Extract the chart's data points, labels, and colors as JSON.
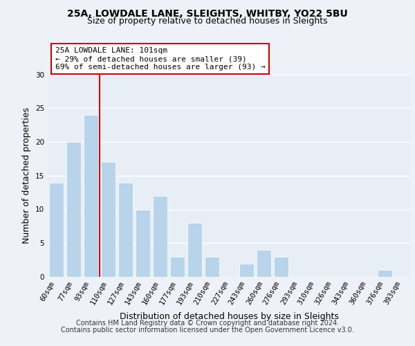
{
  "title": "25A, LOWDALE LANE, SLEIGHTS, WHITBY, YO22 5BU",
  "subtitle": "Size of property relative to detached houses in Sleights",
  "xlabel": "Distribution of detached houses by size in Sleights",
  "ylabel": "Number of detached properties",
  "bar_labels": [
    "60sqm",
    "77sqm",
    "93sqm",
    "110sqm",
    "127sqm",
    "143sqm",
    "160sqm",
    "177sqm",
    "193sqm",
    "210sqm",
    "227sqm",
    "243sqm",
    "260sqm",
    "276sqm",
    "293sqm",
    "310sqm",
    "326sqm",
    "343sqm",
    "360sqm",
    "376sqm",
    "393sqm"
  ],
  "bar_values": [
    14,
    20,
    24,
    17,
    14,
    10,
    12,
    3,
    8,
    3,
    0,
    2,
    4,
    3,
    0,
    0,
    0,
    0,
    0,
    1,
    0
  ],
  "bar_color": "#b8d4ea",
  "bar_edge_color": "#b8d4ea",
  "vline_color": "#cc0000",
  "annotation_text": "25A LOWDALE LANE: 101sqm\n← 29% of detached houses are smaller (39)\n69% of semi-detached houses are larger (93) →",
  "annotation_box_color": "#ffffff",
  "annotation_box_edge": "#cc0000",
  "footer_line1": "Contains HM Land Registry data © Crown copyright and database right 2024.",
  "footer_line2": "Contains public sector information licensed under the Open Government Licence v3.0.",
  "bg_color": "#eef2f8",
  "plot_bg_color": "#e8eef6",
  "title_fontsize": 10,
  "subtitle_fontsize": 9,
  "axis_label_fontsize": 9,
  "tick_fontsize": 7.5,
  "footer_fontsize": 7,
  "annotation_fontsize": 8,
  "ylim": [
    0,
    30
  ],
  "yticks": [
    0,
    5,
    10,
    15,
    20,
    25,
    30
  ]
}
